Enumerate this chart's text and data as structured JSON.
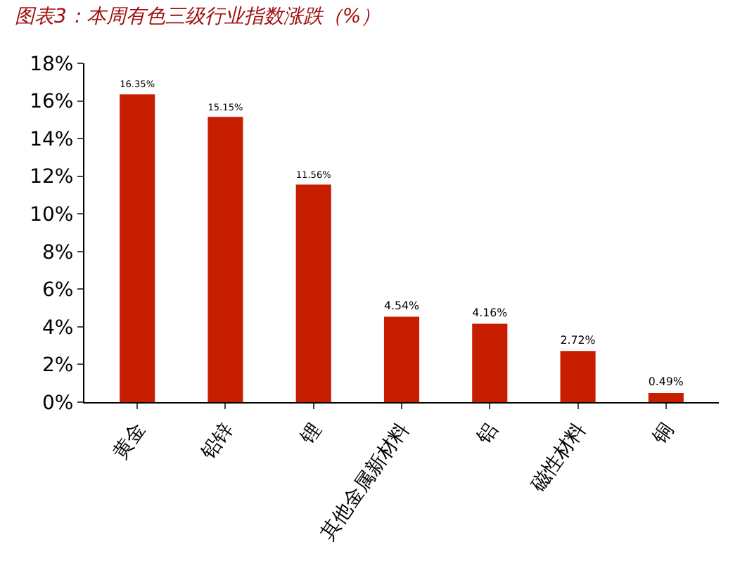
{
  "chart_data": {
    "type": "bar",
    "title": "图表3：本周有色三级行业指数涨跌（%）",
    "categories": [
      "黄金",
      "铅锌",
      "锂",
      "其他金属新材料",
      "铝",
      "磁性材料",
      "铜"
    ],
    "values": [
      16.35,
      15.15,
      11.56,
      4.54,
      4.16,
      2.72,
      0.49
    ],
    "value_labels": [
      "16.35%",
      "15.15%",
      "11.56%",
      "4.54%",
      "4.16%",
      "2.72%",
      "0.49%"
    ],
    "color": "#c81e00",
    "ylim": [
      0,
      18
    ],
    "yticks": [
      {
        "value": 0,
        "label": "0%"
      },
      {
        "value": 2,
        "label": "2%"
      },
      {
        "value": 4,
        "label": "4%"
      },
      {
        "value": 6,
        "label": "6%"
      },
      {
        "value": 8,
        "label": "8%"
      },
      {
        "value": 10,
        "label": "10%"
      },
      {
        "value": 12,
        "label": "12%"
      },
      {
        "value": 14,
        "label": "14%"
      },
      {
        "value": 16,
        "label": "16%"
      },
      {
        "value": 18,
        "label": "18%"
      }
    ],
    "grid": false,
    "legend": false
  }
}
